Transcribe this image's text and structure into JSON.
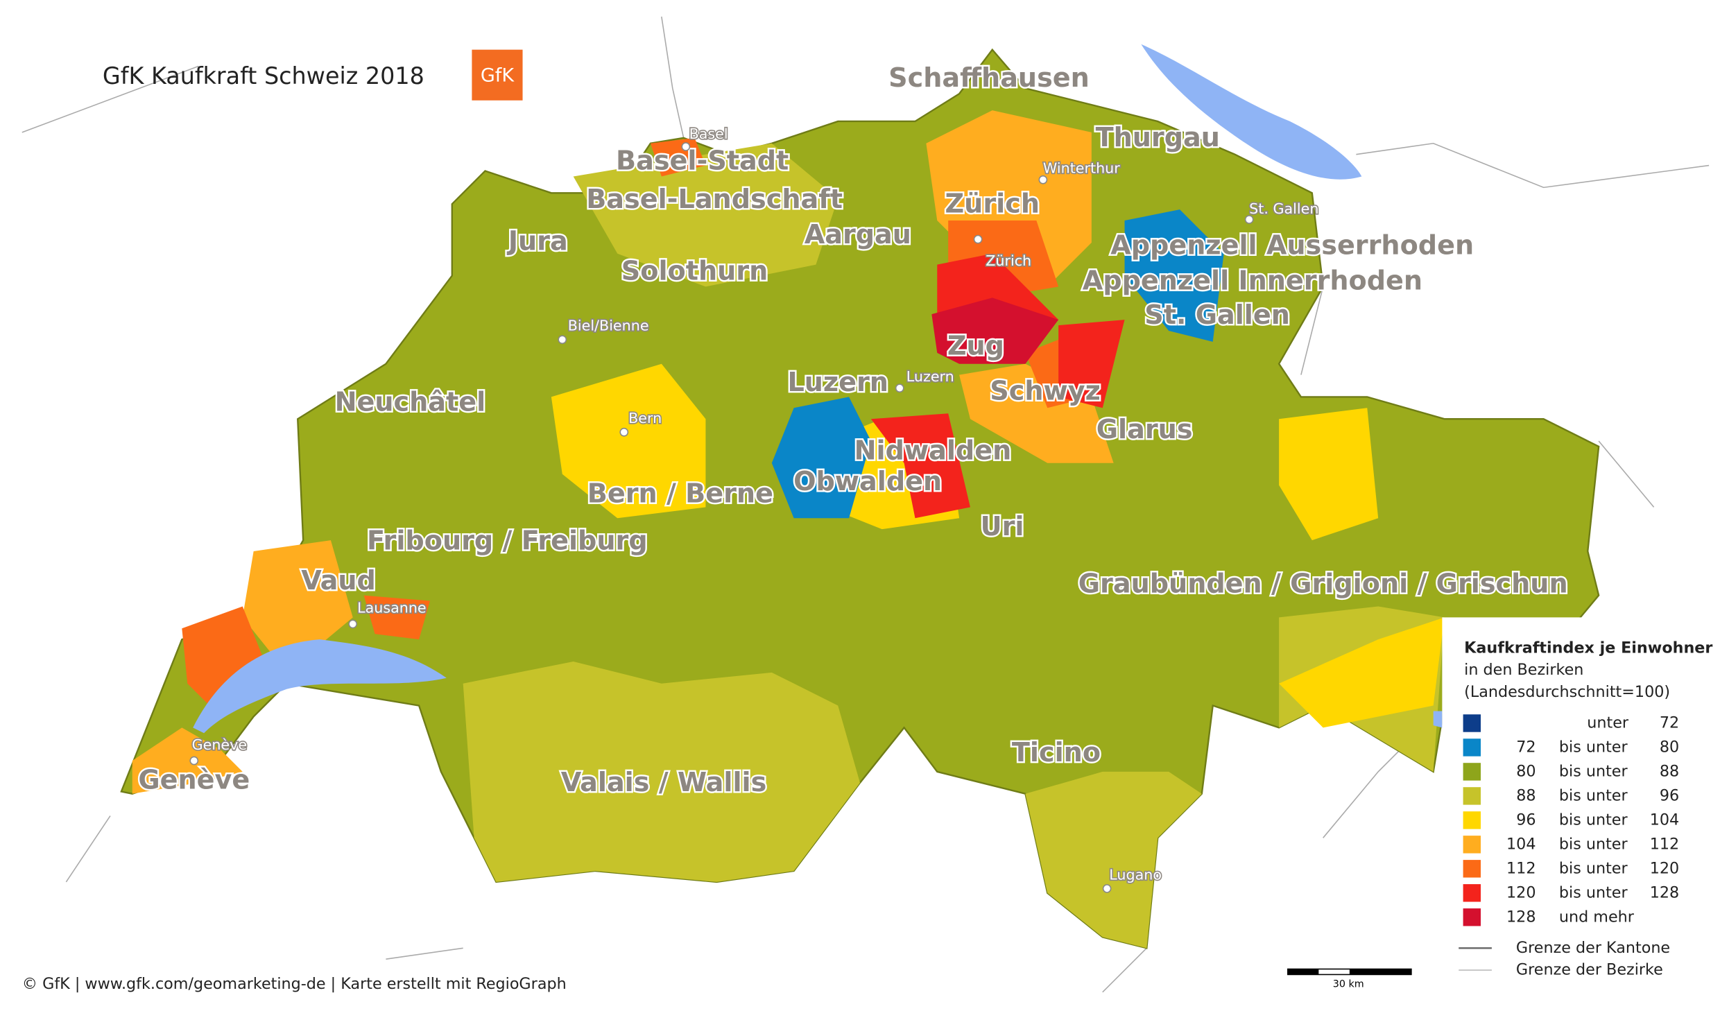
{
  "header": {
    "title": "GfK Kaufkraft Schweiz 2018",
    "logo": "GfK"
  },
  "map": {
    "cantons": [
      "Schaffhausen",
      "Thurgau",
      "Basel-Stadt",
      "Basel-Landschaft",
      "Zürich",
      "Aargau",
      "Jura",
      "Appenzell Ausserrhoden",
      "Solothurn",
      "Appenzell Innerrhoden",
      "St. Gallen",
      "Zug",
      "Luzern",
      "Schwyz",
      "Neuchâtel",
      "Glarus",
      "Nidwalden",
      "Obwalden",
      "Bern / Berne",
      "Uri",
      "Fribourg / Freiburg",
      "Vaud",
      "Graubünden / Grigioni / Grischun",
      "Ticino",
      "Valais / Wallis",
      "Genève"
    ],
    "cities": [
      "Basel",
      "Winterthur",
      "St. Gallen",
      "Zürich",
      "Biel/Bienne",
      "Luzern",
      "Bern",
      "Lausanne",
      "Genève",
      "Lugano"
    ]
  },
  "legend": {
    "title": "Kaufkraftindex je Einwohner",
    "subtitle_lines": [
      "in den Bezirken",
      "(Landesdurchschnitt=100)"
    ],
    "classes": [
      {
        "connector": "unter",
        "to": 72,
        "color": "#0d3d8a"
      },
      {
        "from": 72,
        "connector": "bis unter",
        "to": 80,
        "color": "#0a86c8"
      },
      {
        "from": 80,
        "connector": "bis unter",
        "to": 88,
        "color": "#8ea51b"
      },
      {
        "from": 88,
        "connector": "bis unter",
        "to": 96,
        "color": "#c6c32a"
      },
      {
        "from": 96,
        "connector": "bis unter",
        "to": 104,
        "color": "#ffd700"
      },
      {
        "from": 104,
        "connector": "bis unter",
        "to": 112,
        "color": "#ffad1f"
      },
      {
        "from": 112,
        "connector": "bis unter",
        "to": 120,
        "color": "#fb6a16"
      },
      {
        "from": 120,
        "connector": "bis unter",
        "to": 128,
        "color": "#f3231c"
      },
      {
        "from": 128,
        "connector": "und mehr",
        "color": "#d4102e"
      }
    ],
    "lines": [
      "Grenze der Kantone",
      "Grenze der Bezirke"
    ]
  },
  "scale": "30 km",
  "footer": "© GfK | www.gfk.com/geomarketing-de | Karte erstellt mit RegioGraph"
}
